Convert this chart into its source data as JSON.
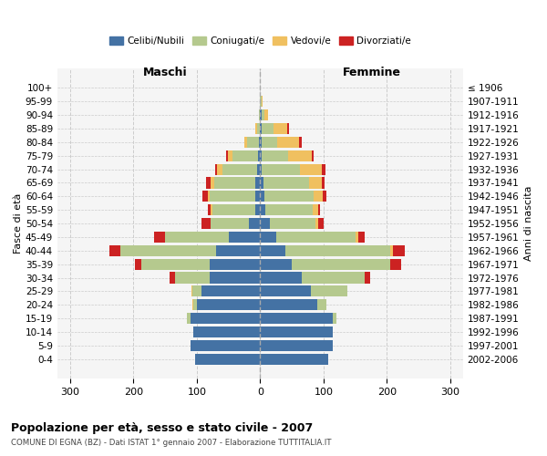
{
  "age_groups": [
    "0-4",
    "5-9",
    "10-14",
    "15-19",
    "20-24",
    "25-29",
    "30-34",
    "35-39",
    "40-44",
    "45-49",
    "50-54",
    "55-59",
    "60-64",
    "65-69",
    "70-74",
    "75-79",
    "80-84",
    "85-89",
    "90-94",
    "95-99",
    "100+"
  ],
  "birth_years": [
    "2002-2006",
    "1997-2001",
    "1992-1996",
    "1987-1991",
    "1982-1986",
    "1977-1981",
    "1972-1976",
    "1967-1971",
    "1962-1966",
    "1957-1961",
    "1952-1956",
    "1947-1951",
    "1942-1946",
    "1937-1941",
    "1932-1936",
    "1927-1931",
    "1922-1926",
    "1917-1921",
    "1912-1916",
    "1907-1911",
    "≤ 1906"
  ],
  "male_celibi": [
    102,
    110,
    105,
    110,
    100,
    92,
    80,
    80,
    70,
    50,
    18,
    8,
    8,
    8,
    5,
    3,
    2,
    0,
    0,
    0,
    0
  ],
  "male_coniugati": [
    0,
    0,
    0,
    5,
    5,
    15,
    55,
    108,
    150,
    100,
    60,
    68,
    72,
    65,
    55,
    40,
    18,
    5,
    2,
    0,
    0
  ],
  "male_vedovi": [
    0,
    0,
    0,
    0,
    2,
    2,
    0,
    0,
    0,
    0,
    0,
    2,
    3,
    5,
    8,
    8,
    5,
    2,
    0,
    0,
    0
  ],
  "male_divorziati": [
    0,
    0,
    0,
    0,
    0,
    0,
    8,
    10,
    18,
    18,
    15,
    5,
    8,
    8,
    3,
    3,
    0,
    0,
    0,
    0,
    0
  ],
  "female_nubili": [
    108,
    115,
    115,
    115,
    90,
    80,
    65,
    50,
    40,
    25,
    15,
    8,
    6,
    5,
    3,
    2,
    2,
    3,
    2,
    0,
    0
  ],
  "female_coniugate": [
    0,
    0,
    0,
    5,
    15,
    58,
    100,
    155,
    165,
    125,
    72,
    75,
    78,
    72,
    60,
    42,
    25,
    18,
    4,
    2,
    0
  ],
  "female_vedove": [
    0,
    0,
    0,
    0,
    0,
    0,
    0,
    0,
    5,
    5,
    5,
    8,
    15,
    20,
    35,
    38,
    35,
    22,
    6,
    2,
    0
  ],
  "female_divorziate": [
    0,
    0,
    0,
    0,
    0,
    0,
    8,
    18,
    18,
    10,
    8,
    3,
    5,
    5,
    5,
    3,
    3,
    2,
    0,
    0,
    0
  ],
  "color_celibi": "#4472a4",
  "color_coniugati": "#b5c98e",
  "color_vedovi": "#f0c060",
  "color_divorziati": "#cc2222",
  "title": "Popolazione per età, sesso e stato civile - 2007",
  "subtitle": "COMUNE DI EGNA (BZ) - Dati ISTAT 1° gennaio 2007 - Elaborazione TUTTITALIA.IT",
  "ylabel_left": "Fasce di età",
  "ylabel_right": "Anni di nascita",
  "label_maschi": "Maschi",
  "label_femmine": "Femmine",
  "legend_celibi": "Celibi/Nubili",
  "legend_coniugati": "Coniugati/e",
  "legend_vedovi": "Vedovi/e",
  "legend_divorziati": "Divorziati/e",
  "xlim": 320,
  "bg_color": "#f5f5f5"
}
